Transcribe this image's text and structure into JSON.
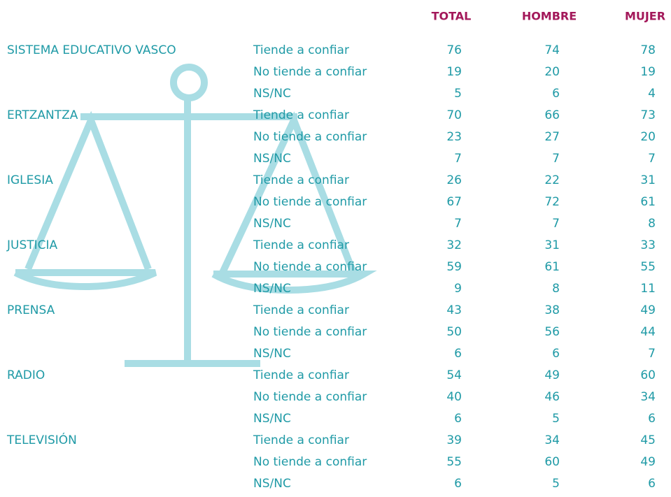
{
  "header": {
    "columns": [
      "TOTAL",
      "HOMBRE",
      "MUJER"
    ]
  },
  "groups": [
    {
      "name": "SISTEMA EDUCATIVO VASCO",
      "rows": [
        [
          "Tiende a confiar",
          76,
          74,
          78
        ],
        [
          "No tiende a confiar",
          19,
          20,
          19
        ],
        [
          "NS/NC",
          5,
          6,
          4
        ]
      ]
    },
    {
      "name": "ERTZANTZA",
      "rows": [
        [
          "Tiende a confiar",
          70,
          66,
          73
        ],
        [
          "No tiende a confiar",
          23,
          27,
          20
        ],
        [
          "NS/NC",
          7,
          7,
          7
        ]
      ]
    },
    {
      "name": "IGLESIA",
      "rows": [
        [
          "Tiende a confiar",
          26,
          22,
          31
        ],
        [
          "No tiende a confiar",
          67,
          72,
          61
        ],
        [
          "NS/NC",
          7,
          7,
          8
        ]
      ]
    },
    {
      "name": "JUSTICIA",
      "rows": [
        [
          "Tiende a confiar",
          32,
          31,
          33
        ],
        [
          "No tiende a confiar",
          59,
          61,
          55
        ],
        [
          "NS/NC",
          9,
          8,
          11
        ]
      ]
    },
    {
      "name": "PRENSA",
      "rows": [
        [
          "Tiende a confiar",
          43,
          38,
          49
        ],
        [
          "No tiende a confiar",
          50,
          56,
          44
        ],
        [
          "NS/NC",
          6,
          6,
          7
        ]
      ]
    },
    {
      "name": "RADIO",
      "rows": [
        [
          "Tiende a confiar",
          54,
          49,
          60
        ],
        [
          "No tiende a confiar",
          40,
          46,
          34
        ],
        [
          "NS/NC",
          6,
          5,
          6
        ]
      ]
    },
    {
      "name": "TELEVISIÓN",
      "rows": [
        [
          "Tiende a confiar",
          39,
          34,
          45
        ],
        [
          "No tiende a confiar",
          55,
          60,
          49
        ],
        [
          "NS/NC",
          6,
          5,
          6
        ]
      ]
    }
  ]
}
